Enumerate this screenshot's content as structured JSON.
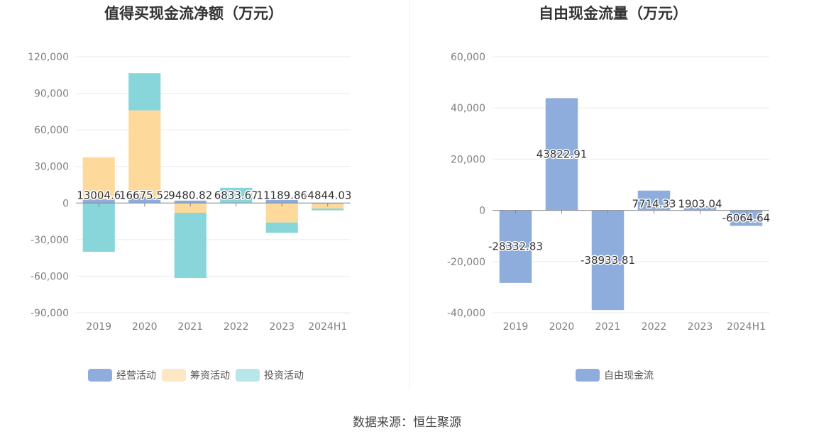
{
  "chart_data": [
    {
      "type": "bar",
      "stacked": true,
      "title": "值得买现金流净额（万元）",
      "categories": [
        "2019",
        "2020",
        "2021",
        "2022",
        "2023",
        "2024H1"
      ],
      "series": [
        {
          "name": "经营活动",
          "color": "#8eaddd",
          "values": [
            3000,
            5000,
            2000,
            500,
            2500,
            -500
          ]
        },
        {
          "name": "筹资活动",
          "color": "#fdd99b",
          "values": [
            34500,
            71000,
            -8000,
            0,
            -16000,
            -4000
          ]
        },
        {
          "name": "投资活动",
          "color": "#88d6da",
          "values": [
            -40000,
            30500,
            -53500,
            12000,
            -8500,
            -1500
          ]
        }
      ],
      "data_labels": [
        "13004.6",
        "16675.52",
        "9480.82",
        "6833.67",
        "11189.86",
        "-4844.03"
      ],
      "yticks": [
        "120,000",
        "90,000",
        "60,000",
        "30,000",
        "0",
        "-30,000",
        "-60,000",
        "-90,000"
      ],
      "ylim": [
        -90000,
        120000
      ],
      "grid": true,
      "legend": "bottom"
    },
    {
      "type": "bar",
      "title": "自由现金流量（万元）",
      "categories": [
        "2019",
        "2020",
        "2021",
        "2022",
        "2023",
        "2024H1"
      ],
      "series": [
        {
          "name": "自由现金流",
          "color": "#8eaddd",
          "values": [
            -28332.83,
            43822.91,
            -38933.81,
            7714.33,
            1903.04,
            -6064.64
          ]
        }
      ],
      "data_labels": [
        "-28332.83",
        "43822.91",
        "-38933.81",
        "7714.33",
        "1903.04",
        "-6064.64"
      ],
      "yticks": [
        "60,000",
        "40,000",
        "20,000",
        "0",
        "-20,000",
        "-40,000"
      ],
      "ylim": [
        -40000,
        60000
      ],
      "grid": true,
      "legend": "bottom"
    }
  ],
  "footer": {
    "source": "数据来源：恒生聚源"
  }
}
